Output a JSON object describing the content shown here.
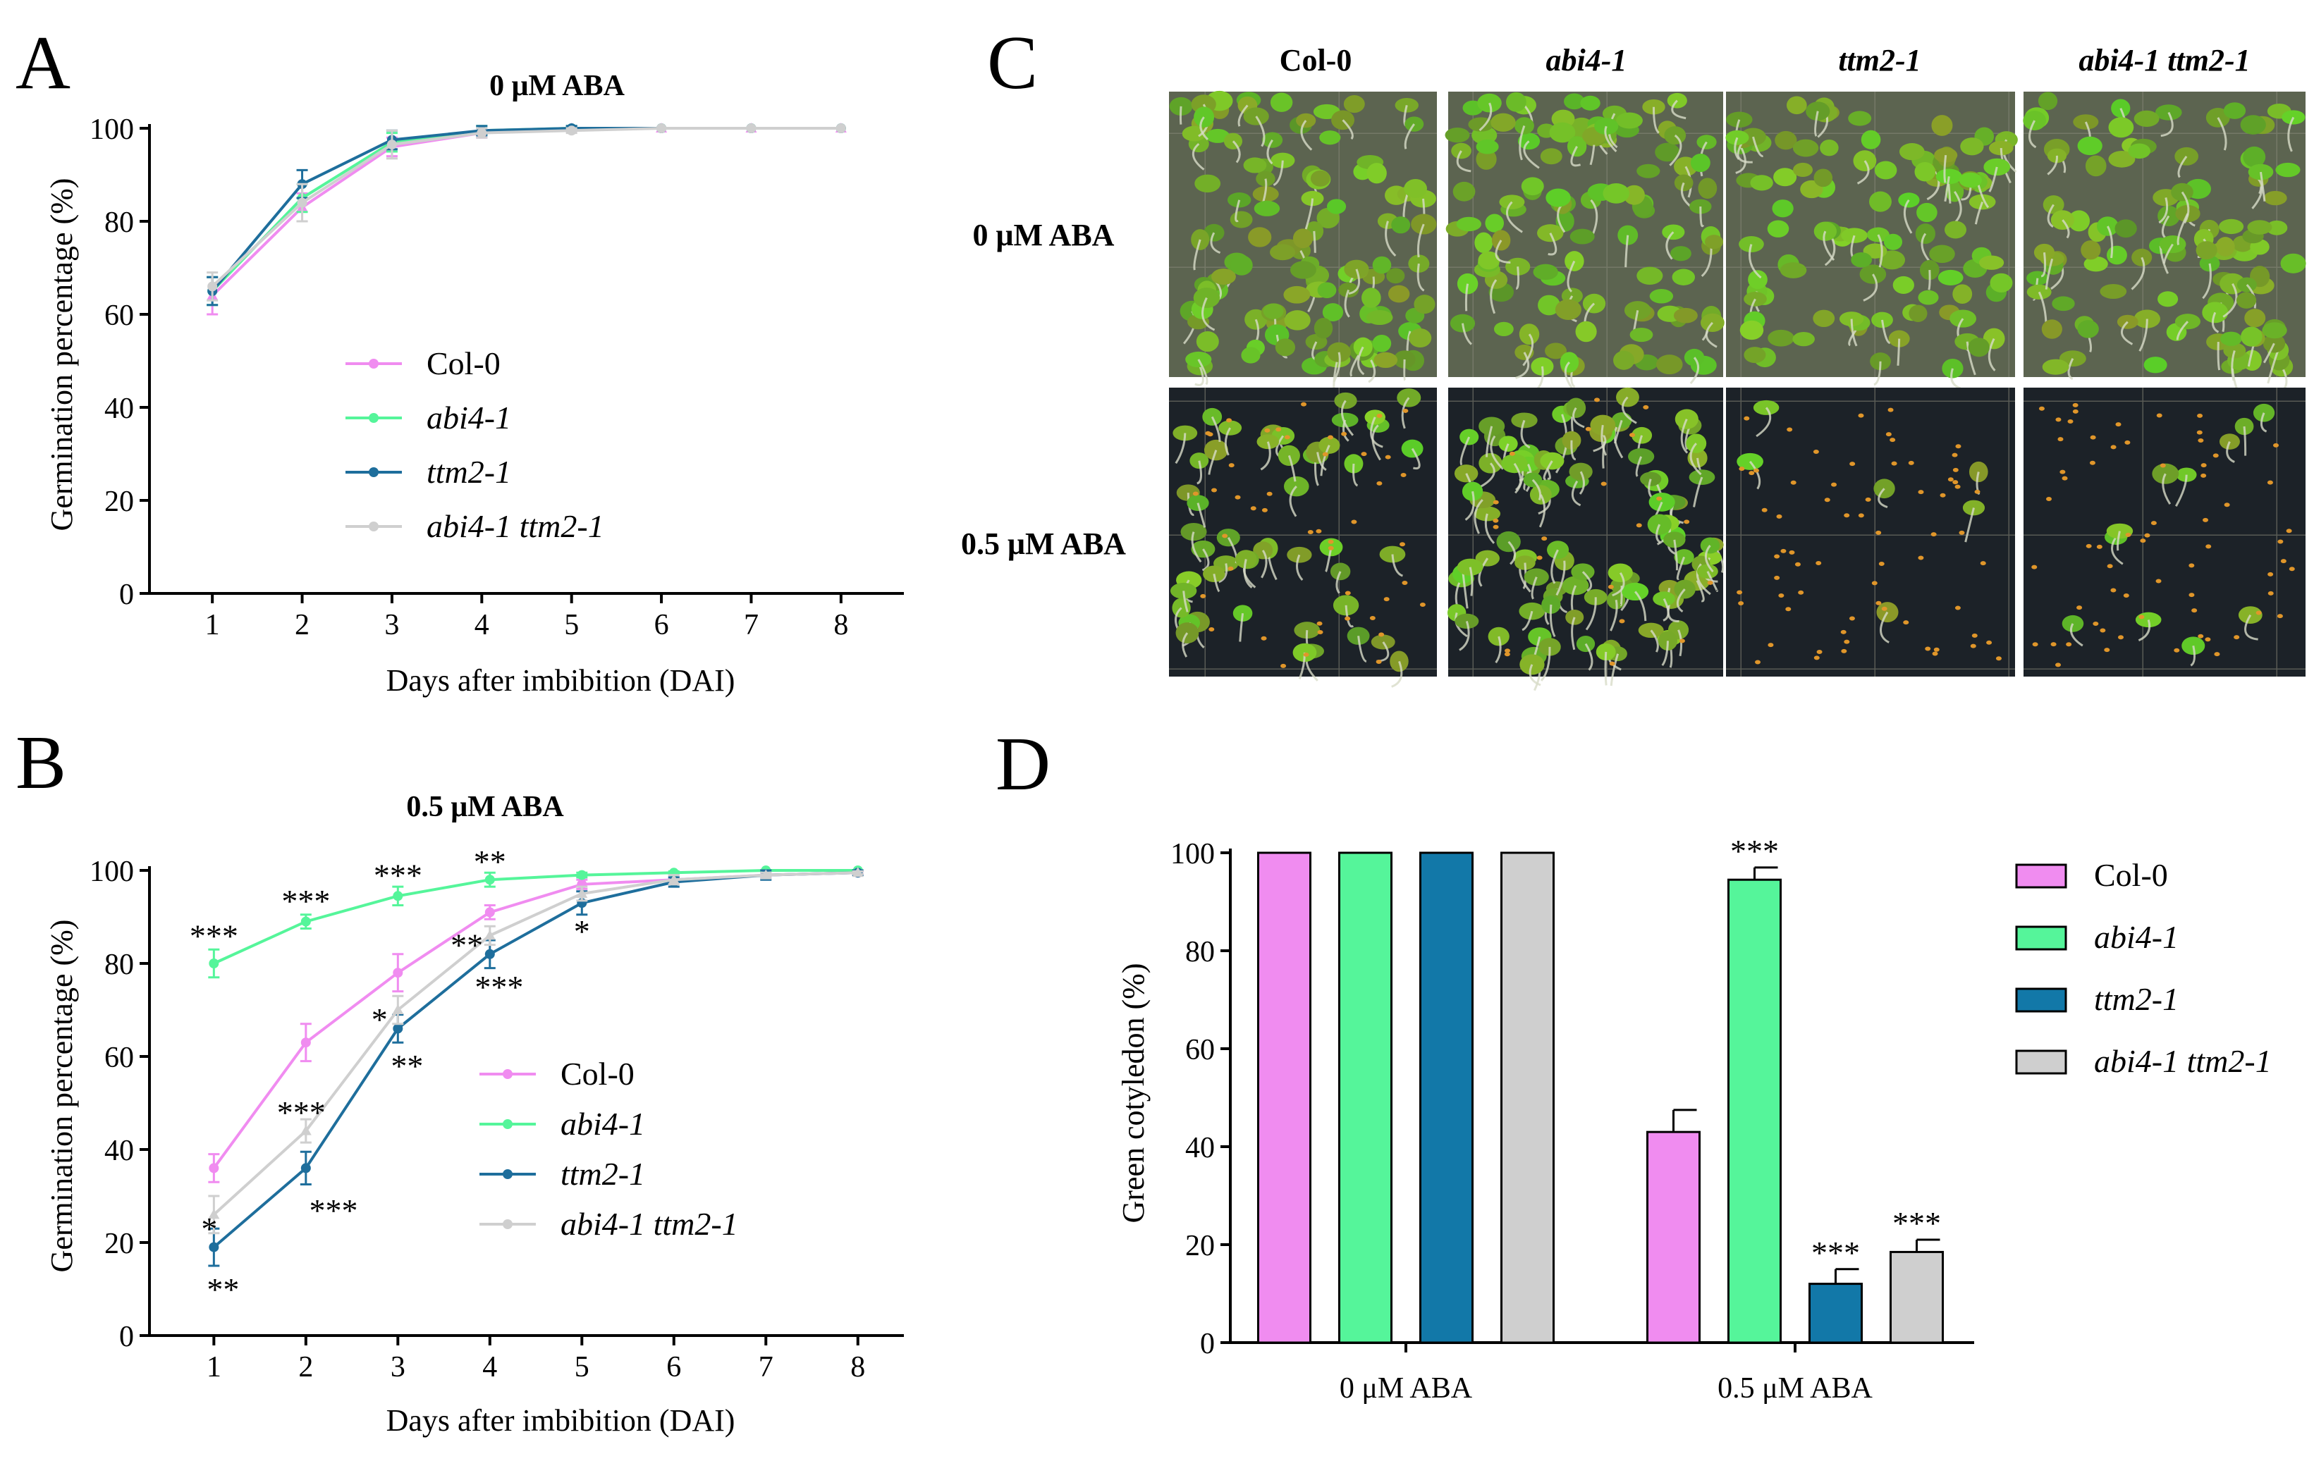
{
  "panels": {
    "A": "A",
    "B": "B",
    "C": "C",
    "D": "D"
  },
  "colors": {
    "Col-0": "#f08cf0",
    "abi4-1": "#55f59a",
    "ttm2-1": "#1278a8",
    "abi4-1 ttm2-1": "#cfcfcf",
    "ttm2-1 line": "#1e6e9c"
  },
  "chart_data": [
    {
      "id": "A",
      "type": "line",
      "title": "0 μM ABA",
      "xlabel": "Days after imbibition (DAI)",
      "ylabel": "Germination percentage (%)",
      "x": [
        1,
        2,
        3,
        4,
        5,
        6,
        7,
        8
      ],
      "xlim": [
        0.3,
        8.7
      ],
      "ylim": [
        0,
        100
      ],
      "yticks": [
        0,
        20,
        40,
        60,
        80,
        100
      ],
      "series": [
        {
          "name": "Col-0",
          "values": [
            64,
            83,
            96,
            99,
            100,
            100,
            100,
            100
          ],
          "err": [
            4,
            3,
            2,
            1,
            0.5,
            0,
            0,
            0
          ]
        },
        {
          "name": "abi4-1",
          "values": [
            65,
            85,
            97,
            99.5,
            100,
            100,
            100,
            100
          ],
          "err": [
            3,
            3,
            2,
            1,
            0.5,
            0,
            0,
            0
          ]
        },
        {
          "name": "ttm2-1",
          "values": [
            65,
            88,
            97.5,
            99.5,
            100,
            100,
            100,
            100
          ],
          "err": [
            3,
            3,
            2,
            1,
            0.5,
            0,
            0,
            0
          ]
        },
        {
          "name": "abi4-1 ttm2-1",
          "values": [
            66,
            84,
            96.5,
            99,
            99.5,
            100,
            100,
            100
          ],
          "err": [
            3,
            4,
            3,
            1,
            0.5,
            0,
            0,
            0
          ]
        }
      ],
      "legend": [
        "Col-0",
        "abi4-1",
        "ttm2-1",
        "abi4-1 ttm2-1"
      ],
      "legend_position": "center"
    },
    {
      "id": "B",
      "type": "line",
      "title": "0.5 μM ABA",
      "xlabel": "Days after imbibition (DAI)",
      "ylabel": "Germination percentage (%)",
      "x": [
        1,
        2,
        3,
        4,
        5,
        6,
        7,
        8
      ],
      "xlim": [
        0.3,
        8.5
      ],
      "ylim": [
        0,
        100
      ],
      "yticks": [
        0,
        20,
        40,
        60,
        80,
        100
      ],
      "series": [
        {
          "name": "Col-0",
          "values": [
            36,
            63,
            78,
            91,
            97,
            98,
            99,
            99.5
          ],
          "err": [
            3,
            4,
            4,
            1.5,
            1,
            0.5,
            0.5,
            0.3
          ]
        },
        {
          "name": "abi4-1",
          "values": [
            80,
            89,
            94.5,
            98,
            99,
            99.5,
            100,
            100
          ],
          "err": [
            3,
            1.5,
            2,
            1.5,
            0.5,
            0.3,
            0,
            0
          ]
        },
        {
          "name": "ttm2-1",
          "values": [
            19,
            36,
            66,
            82,
            93,
            97.5,
            99,
            99.5
          ],
          "err": [
            4,
            3.5,
            3,
            3,
            2.5,
            1,
            1,
            0.5
          ]
        },
        {
          "name": "abi4-1 ttm2-1",
          "values": [
            26,
            44,
            70,
            86,
            95,
            98,
            99,
            99.5
          ],
          "err": [
            4,
            2.5,
            3,
            2,
            1.5,
            1,
            0.5,
            0.3
          ]
        }
      ],
      "legend": [
        "Col-0",
        "abi4-1",
        "ttm2-1",
        "abi4-1 ttm2-1"
      ],
      "legend_position": "lower-right",
      "annotations": [
        {
          "text": "***",
          "x": 1,
          "y": 86
        },
        {
          "text": "***",
          "x": 2,
          "y": 93.5
        },
        {
          "text": "***",
          "x": 3,
          "y": 99
        },
        {
          "text": "**",
          "x": 4,
          "y": 102
        },
        {
          "text": "**",
          "x": 3.75,
          "y": 84
        },
        {
          "text": "***",
          "x": 4.1,
          "y": 75
        },
        {
          "text": "*",
          "x": 5,
          "y": 87
        },
        {
          "text": "*",
          "x": 2.8,
          "y": 68
        },
        {
          "text": "**",
          "x": 3.1,
          "y": 58
        },
        {
          "text": "***",
          "x": 1.95,
          "y": 48
        },
        {
          "text": "***",
          "x": 2.3,
          "y": 27
        },
        {
          "text": "*",
          "x": 0.95,
          "y": 23
        },
        {
          "text": "**",
          "x": 1.1,
          "y": 10
        }
      ]
    },
    {
      "id": "D",
      "type": "bar",
      "ylabel": "Green cotyledon (%)",
      "categories": [
        "0 μM ABA",
        "0.5 μM ABA"
      ],
      "ylim": [
        0,
        100
      ],
      "yticks": [
        0,
        20,
        40,
        60,
        80,
        100
      ],
      "series": [
        {
          "name": "Col-0",
          "values": [
            100,
            43
          ],
          "err": [
            0,
            4.5
          ],
          "sig": [
            "",
            ""
          ]
        },
        {
          "name": "abi4-1",
          "values": [
            100,
            94.5
          ],
          "err": [
            0,
            2.5
          ],
          "sig": [
            "",
            "***"
          ]
        },
        {
          "name": "ttm2-1",
          "values": [
            100,
            12
          ],
          "err": [
            0,
            3
          ],
          "sig": [
            "",
            "***"
          ]
        },
        {
          "name": "abi4-1 ttm2-1",
          "values": [
            100,
            18.5
          ],
          "err": [
            0,
            2.5
          ],
          "sig": [
            "",
            "***"
          ]
        }
      ],
      "legend": [
        "Col-0",
        "abi4-1",
        "ttm2-1",
        "abi4-1 ttm2-1"
      ],
      "legend_position": "top-right"
    }
  ],
  "photo_panel": {
    "columns": [
      "Col-0",
      "abi4-1",
      "ttm2-1",
      "abi4-1 ttm2-1"
    ],
    "rows": [
      "0 μM ABA",
      "0.5 μM ABA"
    ],
    "green_density": [
      [
        0.85,
        0.8,
        0.75,
        0.75
      ],
      [
        0.35,
        0.7,
        0.04,
        0.08
      ]
    ]
  }
}
